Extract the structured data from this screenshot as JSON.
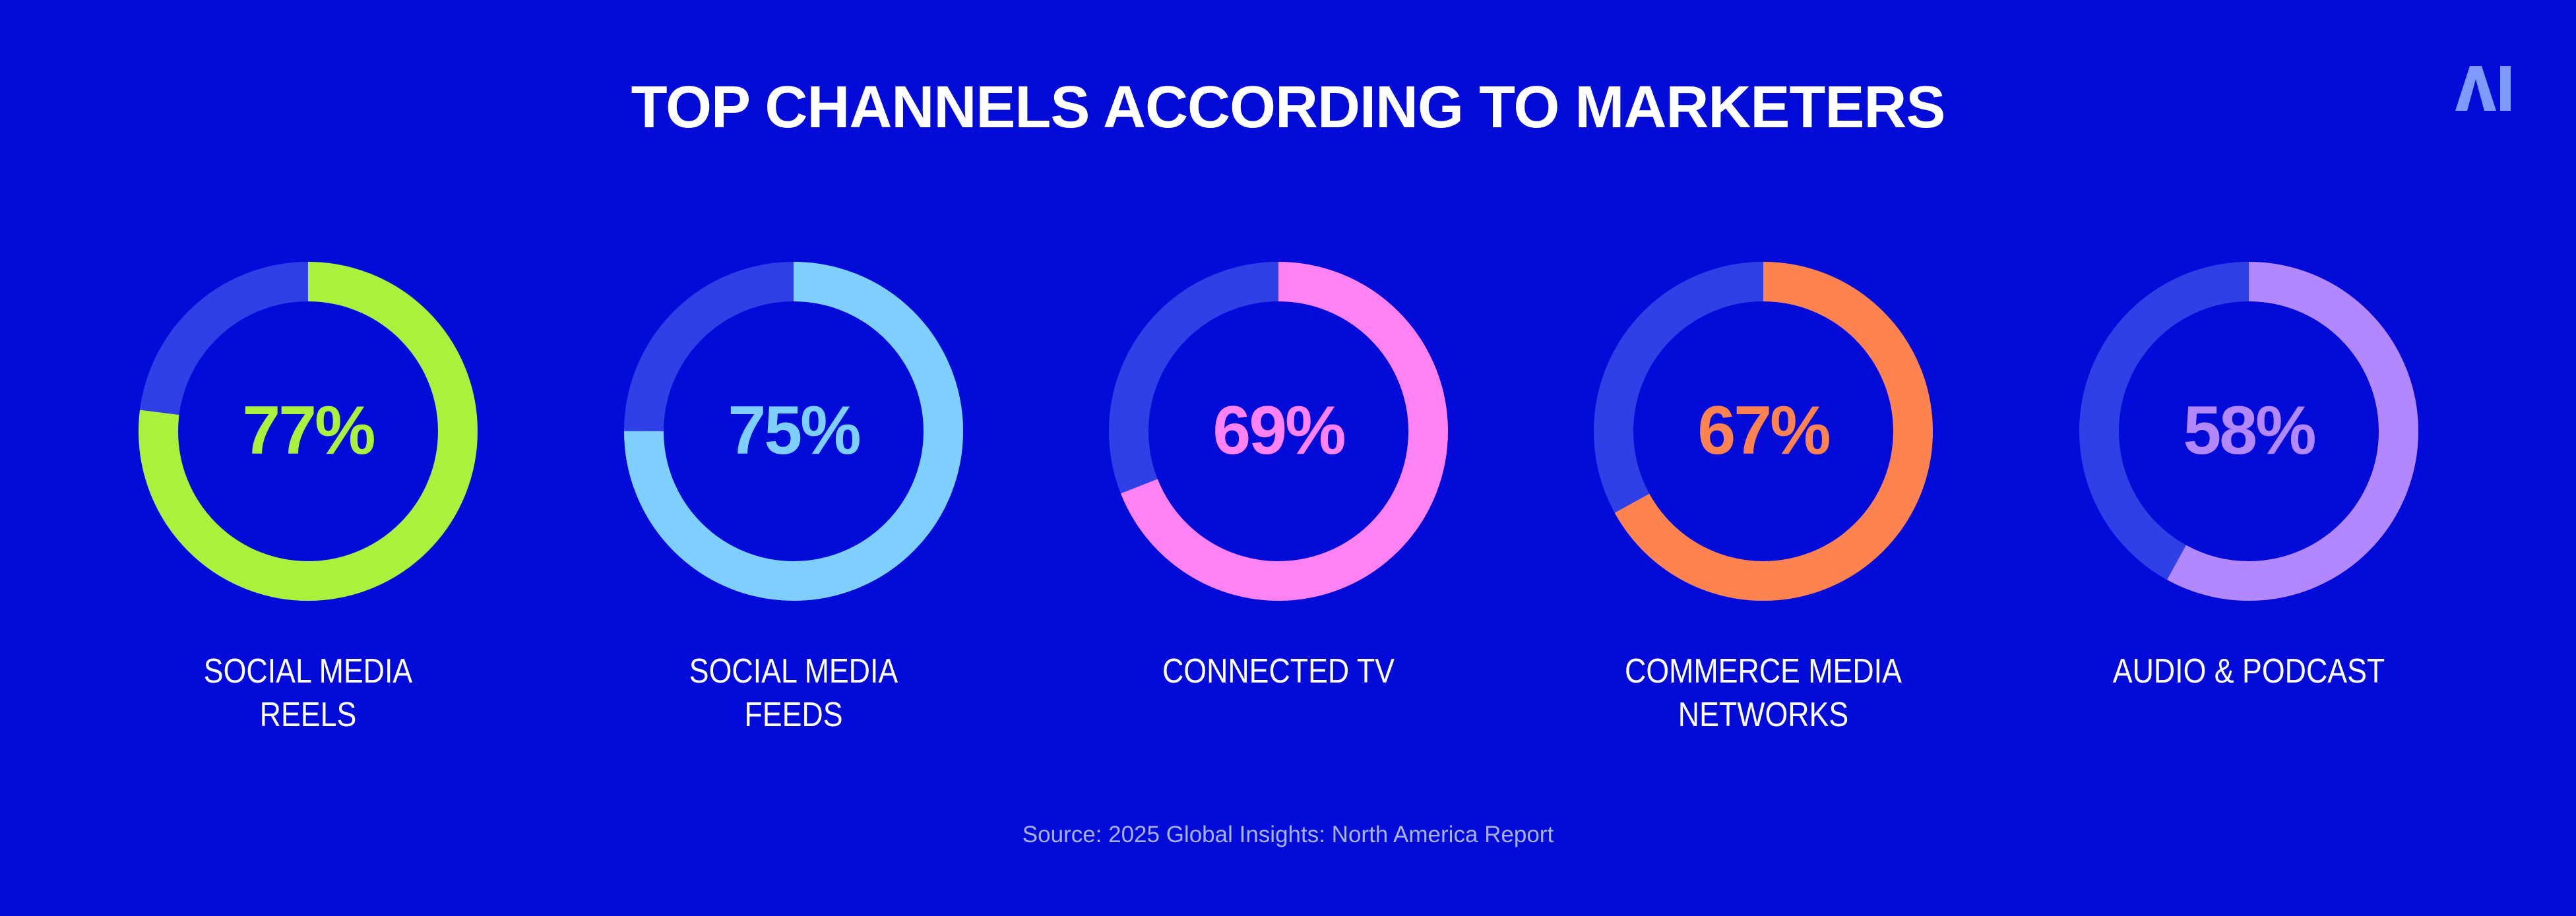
{
  "header": {
    "title": "TOP CHANNELS ACCORDING TO MARKETERS",
    "logo_text": "AI",
    "logo_color": "#7f9bff"
  },
  "chart_data": {
    "type": "donut",
    "title": "TOP CHANNELS ACCORDING TO MARKETERS",
    "track_color": "#2f41e6",
    "items": [
      {
        "value": 77,
        "value_label": "77%",
        "label_lines": [
          "SOCIAL MEDIA",
          "REELS"
        ],
        "color": "#aaf03c"
      },
      {
        "value": 75,
        "value_label": "75%",
        "label_lines": [
          "SOCIAL MEDIA",
          "FEEDS"
        ],
        "color": "#7ecffe"
      },
      {
        "value": 69,
        "value_label": "69%",
        "label_lines": [
          "CONNECTED TV"
        ],
        "color": "#ff82f4"
      },
      {
        "value": 67,
        "value_label": "67%",
        "label_lines": [
          "COMMERCE MEDIA",
          "NETWORKS"
        ],
        "color": "#ff8350"
      },
      {
        "value": 58,
        "value_label": "58%",
        "label_lines": [
          "AUDIO & PODCAST"
        ],
        "color": "#b388ff"
      }
    ]
  },
  "footer": {
    "source": "Source: 2025 Global Insights: North America Report"
  }
}
